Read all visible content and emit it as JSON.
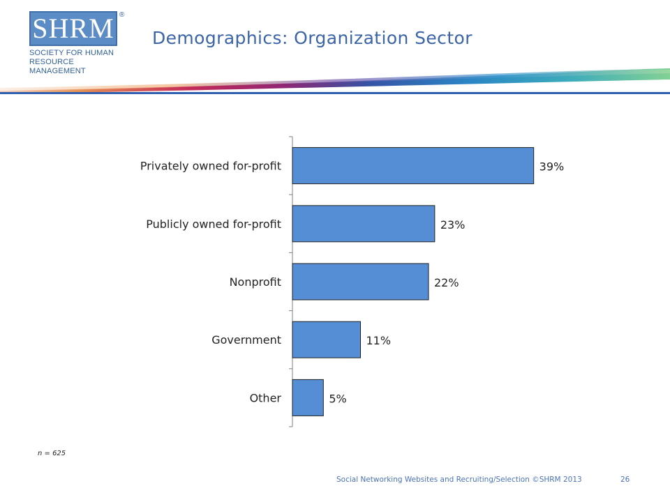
{
  "logo": {
    "mark": "SHRM",
    "registered": "®",
    "tagline": "SOCIETY FOR HUMAN\nRESOURCE MANAGEMENT",
    "color": "#5b8cc6"
  },
  "title": "Demographics: Organization Sector",
  "chart_data": {
    "type": "bar",
    "orientation": "horizontal",
    "categories": [
      "Privately owned for-profit",
      "Publicly owned for-profit",
      "Nonprofit",
      "Government",
      "Other"
    ],
    "values": [
      39,
      23,
      22,
      11,
      5
    ],
    "value_labels": [
      "39%",
      "23%",
      "22%",
      "11%",
      "5%"
    ],
    "unit": "%",
    "xlim": [
      0,
      44
    ],
    "grid": false,
    "bar_color": "#558ed5",
    "title": "",
    "xlabel": "",
    "ylabel": ""
  },
  "note": "n = 625",
  "footer": {
    "text": "Social Networking Websites and Recruiting/Selection ©SHRM 2013",
    "page": "26"
  }
}
